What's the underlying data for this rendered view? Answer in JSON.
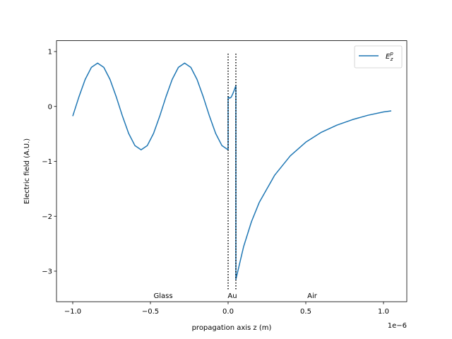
{
  "chart_data": {
    "type": "line",
    "xlabel": "propagation axis z (m)",
    "ylabel": "Electric field (A.U.)",
    "x_offset_label": "1e−6",
    "xlim": [
      -1.1045e-06,
      1.15e-06
    ],
    "ylim": [
      -3.556,
      1.198
    ],
    "xticks": [
      {
        "value": -1e-06,
        "label": "−1.0"
      },
      {
        "value": -5e-07,
        "label": "−0.5"
      },
      {
        "value": 0,
        "label": "0.0"
      },
      {
        "value": 5e-07,
        "label": "0.5"
      },
      {
        "value": 1e-06,
        "label": "1.0"
      }
    ],
    "yticks": [
      {
        "value": -3,
        "label": "−3"
      },
      {
        "value": -2,
        "label": "−2"
      },
      {
        "value": -1,
        "label": "−1"
      },
      0,
      1
    ],
    "legend": "upper right",
    "vlines": [
      0,
      5e-08
    ],
    "annotations": [
      "Glass",
      "Au",
      "Air"
    ],
    "series": [
      {
        "name": "E",
        "name_sub": "z",
        "name_sup": "p",
        "color": "#1f77b4",
        "x": [
          -1e-06,
          -9.6e-07,
          -9.2e-07,
          -8.8e-07,
          -8.4e-07,
          -8e-07,
          -7.6e-07,
          -7.2e-07,
          -6.8e-07,
          -6.4e-07,
          -6e-07,
          -5.6e-07,
          -5.2e-07,
          -4.8e-07,
          -4.4e-07,
          -4e-07,
          -3.6e-07,
          -3.2e-07,
          -2.8e-07,
          -2.4e-07,
          -2e-07,
          -1.6e-07,
          -1.2e-07,
          -8e-08,
          -4e-08,
          0,
          0,
          1e-08,
          2e-08,
          3e-08,
          4e-08,
          5e-08,
          5e-08,
          1e-07,
          1.5e-07,
          2e-07,
          3e-07,
          4e-07,
          5e-07,
          6e-07,
          7e-07,
          8e-07,
          9e-07,
          1e-06,
          1.05e-06
        ],
        "values": [
          -0.176,
          0.176,
          0.492,
          0.712,
          0.79,
          0.712,
          0.492,
          0.176,
          -0.176,
          -0.492,
          -0.712,
          -0.79,
          -0.712,
          -0.492,
          -0.176,
          0.176,
          0.492,
          0.712,
          0.79,
          0.712,
          0.492,
          0.176,
          -0.176,
          -0.492,
          -0.712,
          -0.79,
          0.18,
          0.15,
          0.17,
          0.23,
          0.3,
          0.38,
          -3.15,
          -2.55,
          -2.1,
          -1.75,
          -1.25,
          -0.9,
          -0.65,
          -0.47,
          -0.34,
          -0.24,
          -0.16,
          -0.1,
          -0.08
        ]
      }
    ]
  }
}
